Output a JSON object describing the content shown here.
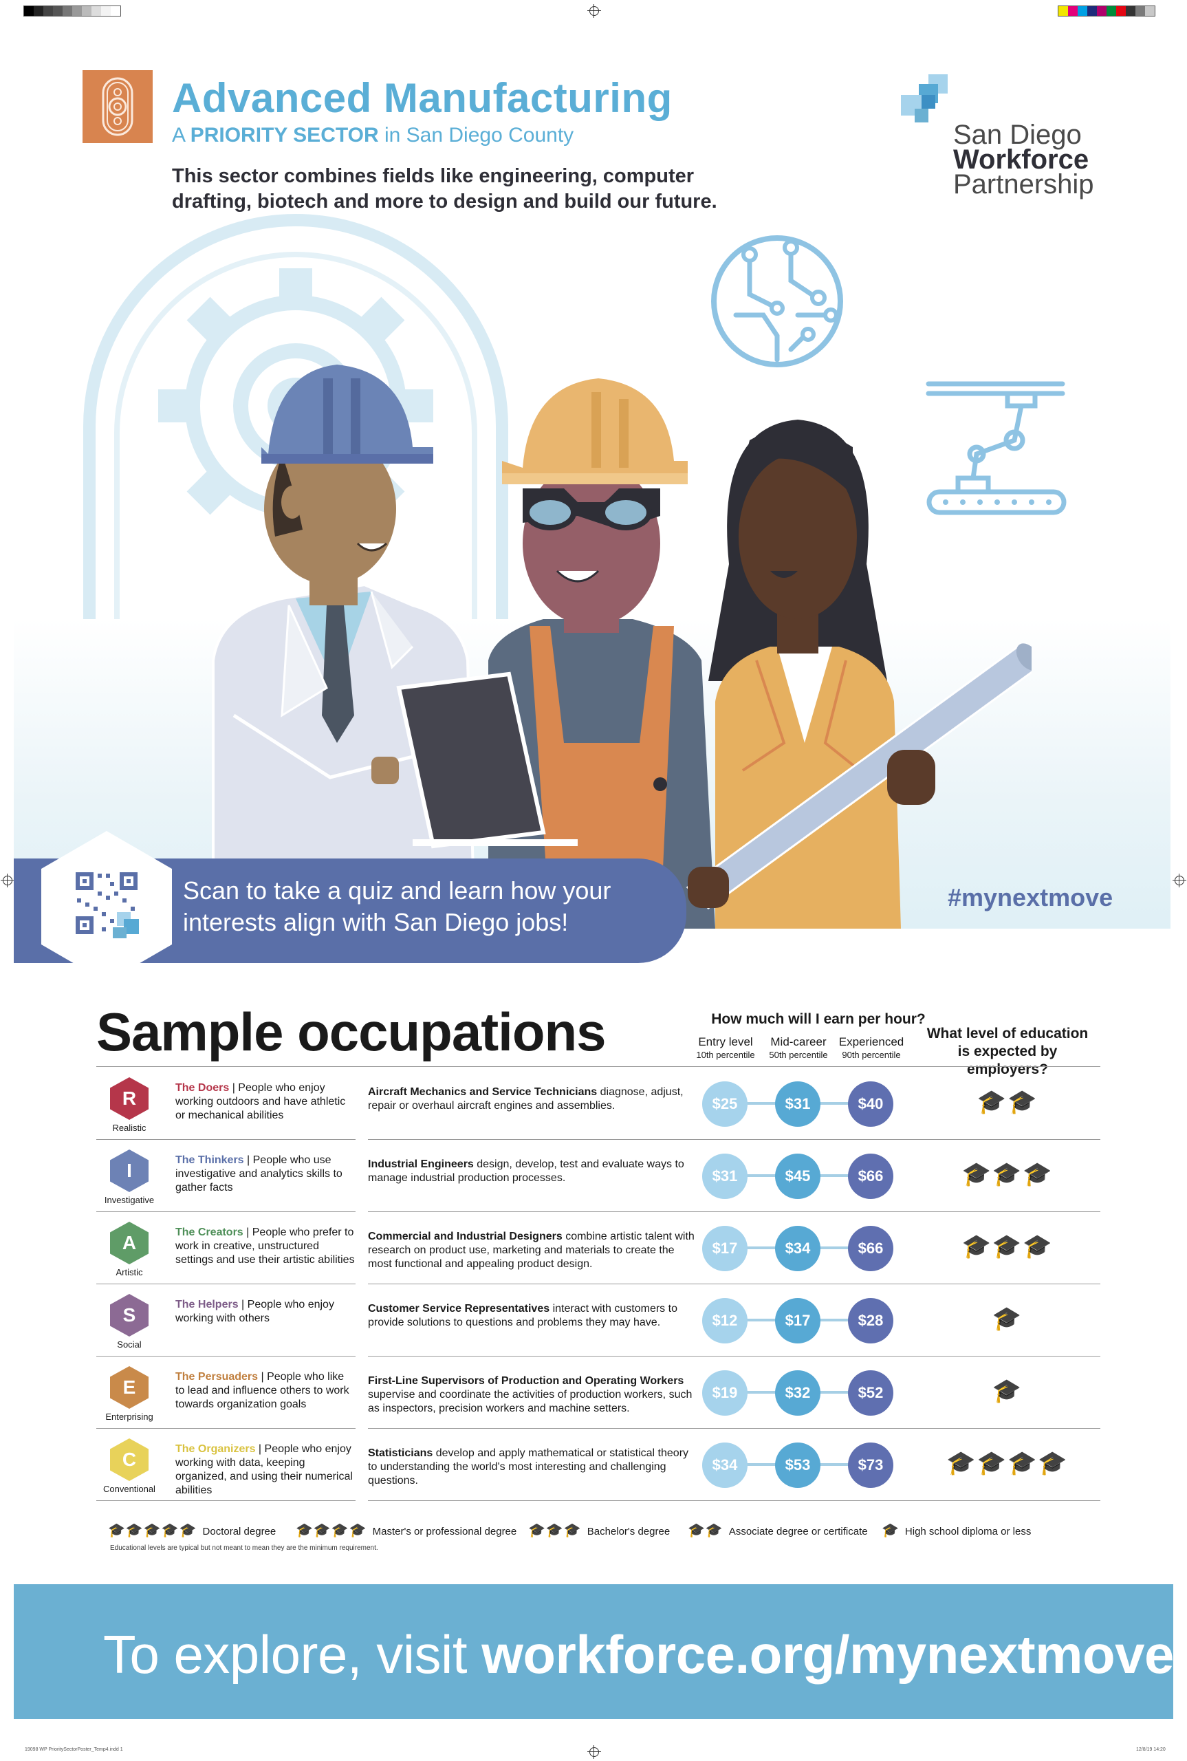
{
  "header": {
    "title": "Advanced Manufacturing",
    "subtitle_pre": "A ",
    "subtitle_bold": "PRIORITY SECTOR",
    "subtitle_post": " in San Diego County",
    "intro": "This sector combines fields like engineering, computer drafting, biotech and more to design and build our future."
  },
  "org": {
    "line1": "San Diego",
    "line2": "Workforce",
    "line3": "Partnership"
  },
  "hero": {
    "scan_text": "Scan to take a quiz and learn how your interests align with San Diego jobs!",
    "hashtag": "#mynextmove"
  },
  "occupations": {
    "title": "Sample occupations",
    "earn_title": "How much will I earn per hour?",
    "levels": [
      {
        "label": "Entry level",
        "pct": "10th percentile"
      },
      {
        "label": "Mid-career",
        "pct": "50th percentile"
      },
      {
        "label": "Experienced",
        "pct": "90th percentile"
      }
    ],
    "edu_title": "What level of education is expected by employers?",
    "rows": [
      {
        "letter": "R",
        "type": "Realistic",
        "color": "#b5364a",
        "name_color": "#b5364a",
        "persona_name": "The Doers",
        "persona_desc": " | People who enjoy working outdoors and have athletic or mechanical abilities",
        "occ_name": "Aircraft Mechanics and Service Technicians",
        "occ_desc": " diagnose, adjust, repair or overhaul aircraft engines and assemblies.",
        "entry": "$25",
        "mid": "$31",
        "exp": "$40",
        "caps": 2
      },
      {
        "letter": "I",
        "type": "Investigative",
        "color": "#6d82b5",
        "name_color": "#5a6fa8",
        "persona_name": "The Thinkers",
        "persona_desc": " | People who use investigative and analytics skills to gather facts",
        "occ_name": "Industrial Engineers",
        "occ_desc": " design, develop, test and evaluate ways to manage industrial production processes.",
        "entry": "$31",
        "mid": "$45",
        "exp": "$66",
        "caps": 3
      },
      {
        "letter": "A",
        "type": "Artistic",
        "color": "#5f9c67",
        "name_color": "#4d8e57",
        "persona_name": "The Creators",
        "persona_desc": " | People who prefer to work in creative, unstructured settings and use their artistic abilities",
        "occ_name": "Commercial and Industrial Designers",
        "occ_desc": " combine artistic talent with research on product use, marketing and materials to create the most functional and appealing product design.",
        "entry": "$17",
        "mid": "$34",
        "exp": "$66",
        "caps": 3
      },
      {
        "letter": "S",
        "type": "Social",
        "color": "#8c6a94",
        "name_color": "#7d5c88",
        "persona_name": "The Helpers",
        "persona_desc": " | People who enjoy working with others",
        "occ_name": "Customer Service Representatives",
        "occ_desc": " interact with customers to provide solutions to questions and problems they may have.",
        "entry": "$12",
        "mid": "$17",
        "exp": "$28",
        "caps": 1
      },
      {
        "letter": "E",
        "type": "Enterprising",
        "color": "#c98a4a",
        "name_color": "#c07f3e",
        "persona_name": "The Persuaders",
        "persona_desc": " | People who like to lead and influence others to work towards organization goals",
        "occ_name": "First-Line Supervisors of Production and Operating Workers",
        "occ_desc": " supervise and coordinate the activities of production workers, such as inspectors, precision workers and machine setters.",
        "entry": "$19",
        "mid": "$32",
        "exp": "$52",
        "caps": 1
      },
      {
        "letter": "C",
        "type": "Conventional",
        "color": "#e8d25a",
        "name_color": "#d9c23f",
        "persona_name": "The Organizers",
        "persona_desc": " | People who enjoy working with data, keeping organized, and using their numerical abilities",
        "occ_name": "Statisticians",
        "occ_desc": " develop and apply mathematical or statistical theory to understanding the world's most interesting and challenging questions.",
        "entry": "$34",
        "mid": "$53",
        "exp": "$73",
        "caps": 4
      }
    ]
  },
  "legend": {
    "items": [
      {
        "caps": 5,
        "label": "Doctoral degree"
      },
      {
        "caps": 4,
        "label": "Master's or professional degree"
      },
      {
        "caps": 3,
        "label": "Bachelor's degree"
      },
      {
        "caps": 2,
        "label": "Associate degree or certificate"
      },
      {
        "caps": 1,
        "label": "High school diploma or less"
      }
    ],
    "note": "Educational levels are typical but not meant to mean they are the minimum requirement."
  },
  "footer": {
    "pre": "To explore, visit ",
    "url": "workforce.org/mynextmove"
  },
  "print": {
    "slug_left": "19098 WP PrioritySectorPoster_Temp4.indd 1",
    "slug_right": "12/8/19 14:20"
  },
  "icons": [
    "gear-icon",
    "circuit-globe-icon",
    "robot-arm-icon",
    "qr-code-icon",
    "graduation-cap-icon"
  ]
}
